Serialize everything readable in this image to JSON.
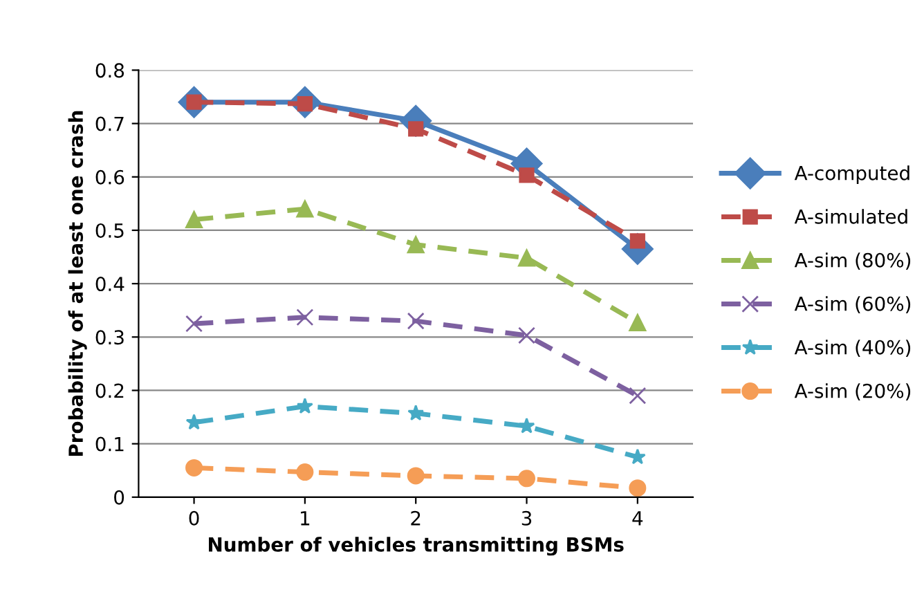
{
  "chart_data": {
    "type": "line",
    "xlabel": "Number of vehicles transmitting BSMs",
    "ylabel": "Probability of at least one crash",
    "categories": [
      "0",
      "1",
      "2",
      "3",
      "4"
    ],
    "series": [
      {
        "name": "A-computed",
        "color": "#4a7ebb",
        "marker": "diamond",
        "line_style": "solid",
        "values": [
          0.74,
          0.74,
          0.705,
          0.625,
          0.465
        ]
      },
      {
        "name": "A-simulated",
        "color": "#be4b48",
        "marker": "square",
        "line_style": "dashed",
        "values": [
          0.74,
          0.737,
          0.69,
          0.603,
          0.48
        ]
      },
      {
        "name": "A-sim (80%)",
        "color": "#98b954",
        "marker": "triangle",
        "line_style": "dashed",
        "values": [
          0.52,
          0.54,
          0.473,
          0.448,
          0.327
        ]
      },
      {
        "name": "A-sim (60%)",
        "color": "#7d60a0",
        "marker": "cross",
        "line_style": "dashed",
        "values": [
          0.325,
          0.337,
          0.33,
          0.303,
          0.19
        ]
      },
      {
        "name": "A-sim (40%)",
        "color": "#46aac5",
        "marker": "star",
        "line_style": "dashed",
        "values": [
          0.14,
          0.17,
          0.157,
          0.133,
          0.075
        ]
      },
      {
        "name": "A-sim (20%)",
        "color": "#f59d56",
        "marker": "circle",
        "line_style": "dashed",
        "values": [
          0.055,
          0.047,
          0.04,
          0.035,
          0.017
        ]
      }
    ],
    "ylim": [
      0,
      0.8
    ],
    "yticks": [
      0,
      0.1,
      0.2,
      0.3,
      0.4,
      0.5,
      0.6,
      0.7,
      0.8
    ],
    "grid": "y",
    "legend": "right"
  }
}
